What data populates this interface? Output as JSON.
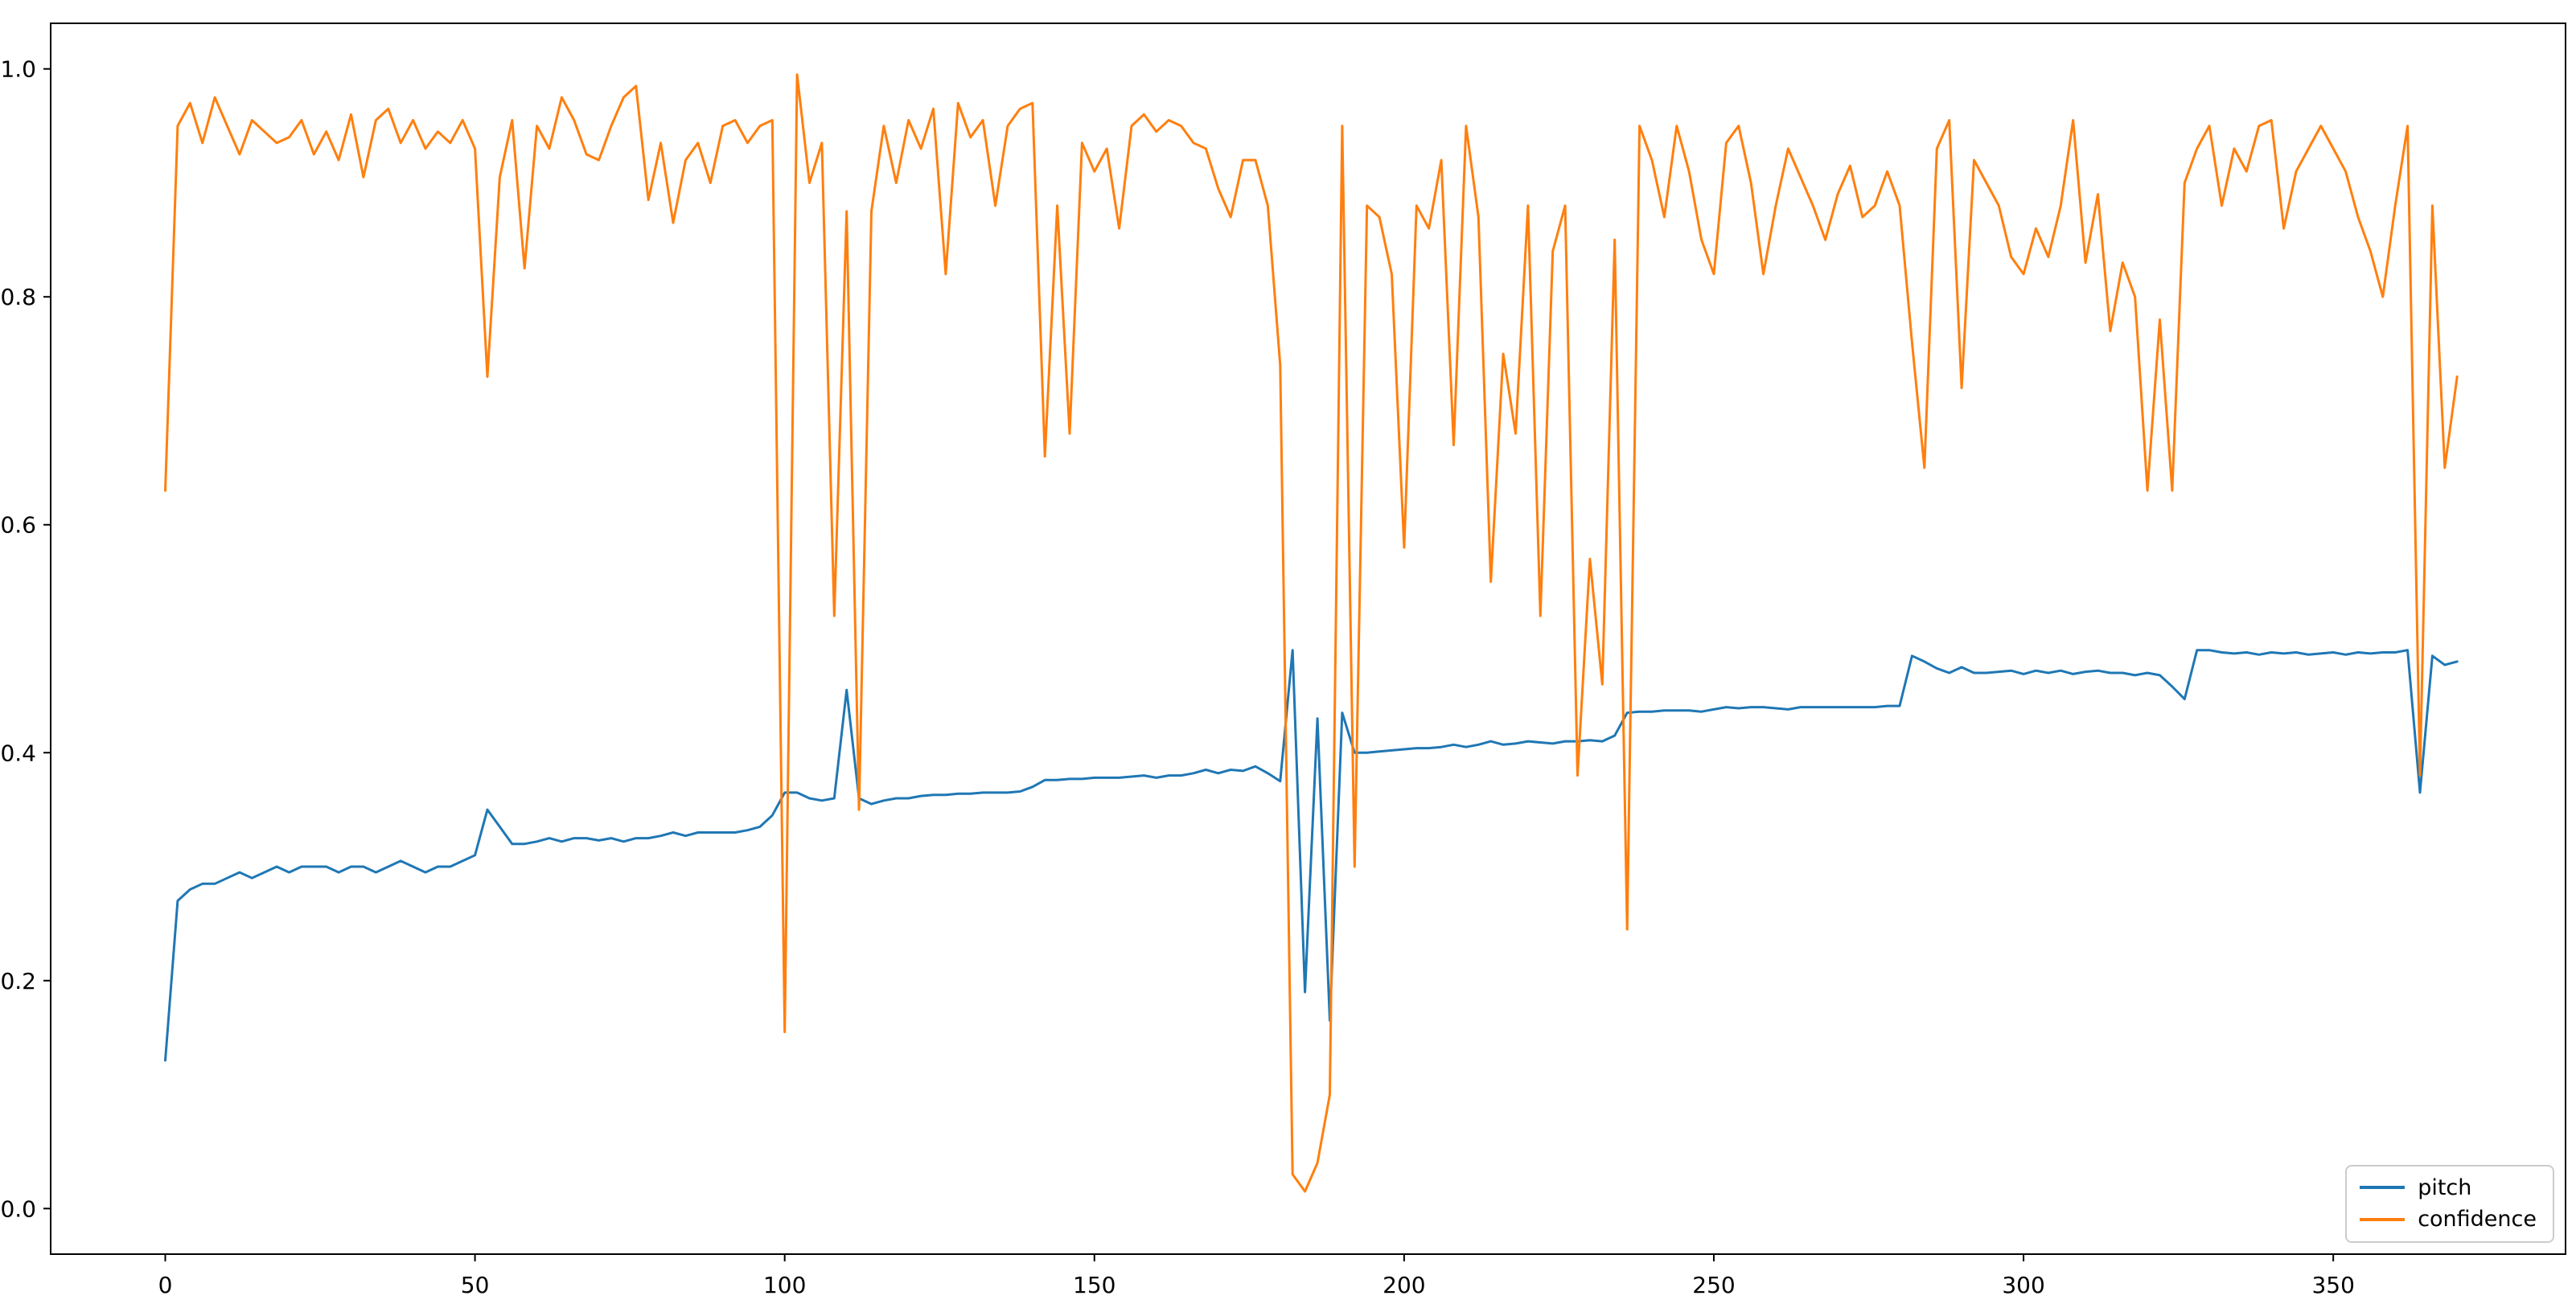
{
  "chart_data": {
    "type": "line",
    "title": "",
    "xlabel": "",
    "ylabel": "",
    "grid": false,
    "background": "#ffffff",
    "xlim": [
      -18.5,
      387.5
    ],
    "ylim": [
      -0.04,
      1.04
    ],
    "xticks": [
      0,
      50,
      100,
      150,
      200,
      250,
      300,
      350
    ],
    "ytick_labels": [
      "0.0",
      "0.2",
      "0.4",
      "0.6",
      "0.8",
      "1.0"
    ],
    "x_start": 0,
    "x_step": 2,
    "legend": {
      "position": "lower right"
    },
    "series": [
      {
        "name": "pitch",
        "color": "#1f77b4",
        "values": [
          0.13,
          0.27,
          0.28,
          0.285,
          0.285,
          0.29,
          0.295,
          0.29,
          0.295,
          0.3,
          0.295,
          0.3,
          0.3,
          0.3,
          0.295,
          0.3,
          0.3,
          0.295,
          0.3,
          0.305,
          0.3,
          0.295,
          0.3,
          0.3,
          0.305,
          0.31,
          0.35,
          0.335,
          0.32,
          0.32,
          0.322,
          0.325,
          0.322,
          0.325,
          0.325,
          0.323,
          0.325,
          0.322,
          0.325,
          0.325,
          0.327,
          0.33,
          0.327,
          0.33,
          0.33,
          0.33,
          0.33,
          0.332,
          0.335,
          0.345,
          0.365,
          0.365,
          0.36,
          0.358,
          0.36,
          0.455,
          0.36,
          0.355,
          0.358,
          0.36,
          0.36,
          0.362,
          0.363,
          0.363,
          0.364,
          0.364,
          0.365,
          0.365,
          0.365,
          0.366,
          0.37,
          0.376,
          0.376,
          0.377,
          0.377,
          0.378,
          0.378,
          0.378,
          0.379,
          0.38,
          0.378,
          0.38,
          0.38,
          0.382,
          0.385,
          0.382,
          0.385,
          0.384,
          0.388,
          0.382,
          0.375,
          0.49,
          0.19,
          0.43,
          0.165,
          0.435,
          0.4,
          0.4,
          0.401,
          0.402,
          0.403,
          0.404,
          0.404,
          0.405,
          0.407,
          0.405,
          0.407,
          0.41,
          0.407,
          0.408,
          0.41,
          0.409,
          0.408,
          0.41,
          0.41,
          0.411,
          0.41,
          0.415,
          0.435,
          0.436,
          0.436,
          0.437,
          0.437,
          0.437,
          0.436,
          0.438,
          0.44,
          0.439,
          0.44,
          0.44,
          0.439,
          0.438,
          0.44,
          0.44,
          0.44,
          0.44,
          0.44,
          0.44,
          0.44,
          0.441,
          0.441,
          0.485,
          0.48,
          0.474,
          0.47,
          0.475,
          0.47,
          0.47,
          0.471,
          0.472,
          0.469,
          0.472,
          0.47,
          0.472,
          0.469,
          0.471,
          0.472,
          0.47,
          0.47,
          0.468,
          0.47,
          0.468,
          0.458,
          0.447,
          0.49,
          0.49,
          0.488,
          0.487,
          0.488,
          0.486,
          0.488,
          0.487,
          0.488,
          0.486,
          0.487,
          0.488,
          0.486,
          0.488,
          0.487,
          0.488,
          0.488,
          0.49,
          0.365,
          0.485,
          0.477,
          0.48
        ]
      },
      {
        "name": "confidence",
        "color": "#ff7f0e",
        "values": [
          0.63,
          0.95,
          0.97,
          0.935,
          0.975,
          0.95,
          0.925,
          0.955,
          0.945,
          0.935,
          0.94,
          0.955,
          0.925,
          0.945,
          0.92,
          0.96,
          0.905,
          0.955,
          0.965,
          0.935,
          0.955,
          0.93,
          0.945,
          0.935,
          0.955,
          0.93,
          0.73,
          0.905,
          0.955,
          0.825,
          0.95,
          0.93,
          0.975,
          0.955,
          0.925,
          0.92,
          0.95,
          0.975,
          0.985,
          0.885,
          0.935,
          0.865,
          0.92,
          0.935,
          0.9,
          0.95,
          0.955,
          0.935,
          0.95,
          0.955,
          0.155,
          0.995,
          0.9,
          0.935,
          0.52,
          0.875,
          0.35,
          0.875,
          0.95,
          0.9,
          0.955,
          0.93,
          0.965,
          0.82,
          0.97,
          0.94,
          0.955,
          0.88,
          0.95,
          0.965,
          0.97,
          0.66,
          0.88,
          0.68,
          0.935,
          0.91,
          0.93,
          0.86,
          0.95,
          0.96,
          0.945,
          0.955,
          0.95,
          0.935,
          0.93,
          0.895,
          0.87,
          0.92,
          0.92,
          0.88,
          0.74,
          0.03,
          0.015,
          0.04,
          0.1,
          0.95,
          0.3,
          0.88,
          0.87,
          0.82,
          0.58,
          0.88,
          0.86,
          0.92,
          0.67,
          0.95,
          0.87,
          0.55,
          0.75,
          0.68,
          0.88,
          0.52,
          0.84,
          0.88,
          0.38,
          0.57,
          0.46,
          0.85,
          0.245,
          0.95,
          0.92,
          0.87,
          0.95,
          0.91,
          0.85,
          0.82,
          0.935,
          0.95,
          0.9,
          0.82,
          0.88,
          0.93,
          0.905,
          0.88,
          0.85,
          0.89,
          0.915,
          0.87,
          0.88,
          0.91,
          0.88,
          0.76,
          0.65,
          0.93,
          0.955,
          0.72,
          0.92,
          0.9,
          0.88,
          0.835,
          0.82,
          0.86,
          0.835,
          0.88,
          0.955,
          0.83,
          0.89,
          0.77,
          0.83,
          0.8,
          0.63,
          0.78,
          0.63,
          0.9,
          0.93,
          0.95,
          0.88,
          0.93,
          0.91,
          0.95,
          0.955,
          0.86,
          0.91,
          0.93,
          0.95,
          0.93,
          0.91,
          0.87,
          0.84,
          0.8,
          0.88,
          0.95,
          0.38,
          0.88,
          0.65,
          0.73
        ]
      }
    ]
  },
  "legend": {
    "entries": [
      "pitch",
      "confidence"
    ]
  }
}
